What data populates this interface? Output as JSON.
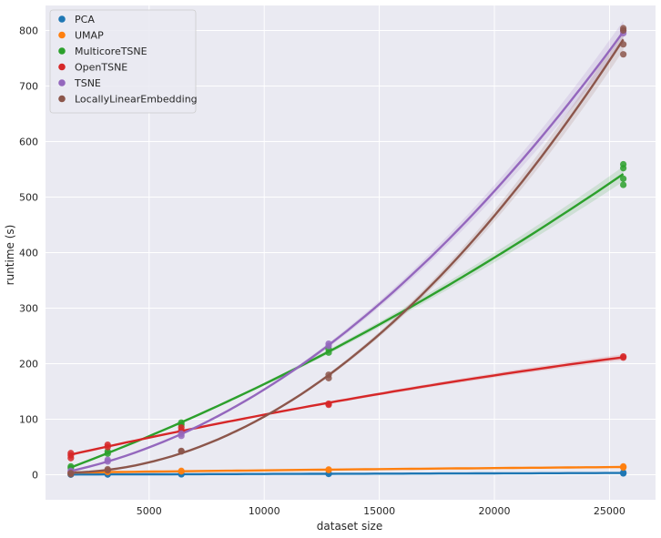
{
  "chart_data": {
    "type": "scatter",
    "xlabel": "dataset size",
    "ylabel": "runtime (s)",
    "xlim": [
      500,
      27000
    ],
    "ylim": [
      -45,
      845
    ],
    "xticks": [
      5000,
      10000,
      15000,
      20000,
      25000
    ],
    "yticks": [
      0,
      100,
      200,
      300,
      400,
      500,
      600,
      700,
      800
    ],
    "grid": true,
    "legend_position": "top-left",
    "x": [
      1600,
      3200,
      6400,
      12800,
      25600
    ],
    "series": [
      {
        "name": "PCA",
        "color": "#1f77b4",
        "points": [
          [
            1600,
            0.3
          ],
          [
            1600,
            0.6
          ],
          [
            3200,
            0.5
          ],
          [
            3200,
            0.9
          ],
          [
            6400,
            0.8
          ],
          [
            6400,
            1.2
          ],
          [
            12800,
            1.5
          ],
          [
            12800,
            2.0
          ],
          [
            25600,
            2.5
          ],
          [
            25600,
            3.2
          ],
          [
            25600,
            4.0
          ]
        ],
        "fit": [
          1600,
          0.4,
          25600,
          3.2
        ]
      },
      {
        "name": "UMAP",
        "color": "#ff7f0e",
        "points": [
          [
            1600,
            3
          ],
          [
            1600,
            4
          ],
          [
            3200,
            5
          ],
          [
            3200,
            5.5
          ],
          [
            6400,
            6
          ],
          [
            6400,
            7
          ],
          [
            12800,
            8.5
          ],
          [
            12800,
            9.5
          ],
          [
            25600,
            13
          ],
          [
            25600,
            14
          ],
          [
            25600,
            15
          ]
        ],
        "fit": [
          1600,
          3.5,
          25600,
          14
        ]
      },
      {
        "name": "MulticoreTSNE",
        "color": "#2ca02c",
        "points": [
          [
            1600,
            12
          ],
          [
            1600,
            15
          ],
          [
            3200,
            38
          ],
          [
            3200,
            42
          ],
          [
            6400,
            90
          ],
          [
            6400,
            94
          ],
          [
            12800,
            220
          ],
          [
            12800,
            226
          ],
          [
            25600,
            522
          ],
          [
            25600,
            533
          ],
          [
            25600,
            552
          ],
          [
            25600,
            559
          ]
        ],
        "fit": [
          1600,
          15,
          25600,
          542
        ]
      },
      {
        "name": "OpenTSNE",
        "color": "#d62728",
        "points": [
          [
            1600,
            30
          ],
          [
            1600,
            35
          ],
          [
            1600,
            39
          ],
          [
            3200,
            50
          ],
          [
            3200,
            54
          ],
          [
            6400,
            80
          ],
          [
            6400,
            85
          ],
          [
            12800,
            126
          ],
          [
            12800,
            128
          ],
          [
            25600,
            211
          ],
          [
            25600,
            213
          ]
        ],
        "fit": [
          1600,
          39,
          25600,
          213
        ]
      },
      {
        "name": "TSNE",
        "color": "#9467bd",
        "points": [
          [
            1600,
            5
          ],
          [
            1600,
            7
          ],
          [
            3200,
            24
          ],
          [
            3200,
            27
          ],
          [
            6400,
            70
          ],
          [
            6400,
            74
          ],
          [
            12800,
            232
          ],
          [
            12800,
            236
          ],
          [
            25600,
            795
          ],
          [
            25600,
            800
          ]
        ],
        "fit": [
          1600,
          7,
          25600,
          798
        ]
      },
      {
        "name": "LocallyLinearEmbedding",
        "color": "#8c564b",
        "points": [
          [
            1600,
            1
          ],
          [
            1600,
            3
          ],
          [
            3200,
            8
          ],
          [
            3200,
            10
          ],
          [
            6400,
            42
          ],
          [
            6400,
            43
          ],
          [
            12800,
            174
          ],
          [
            12800,
            180
          ],
          [
            25600,
            757
          ],
          [
            25600,
            775
          ],
          [
            25600,
            800
          ],
          [
            25600,
            804
          ]
        ],
        "fit": [
          1600,
          3,
          25600,
          785
        ]
      }
    ]
  }
}
